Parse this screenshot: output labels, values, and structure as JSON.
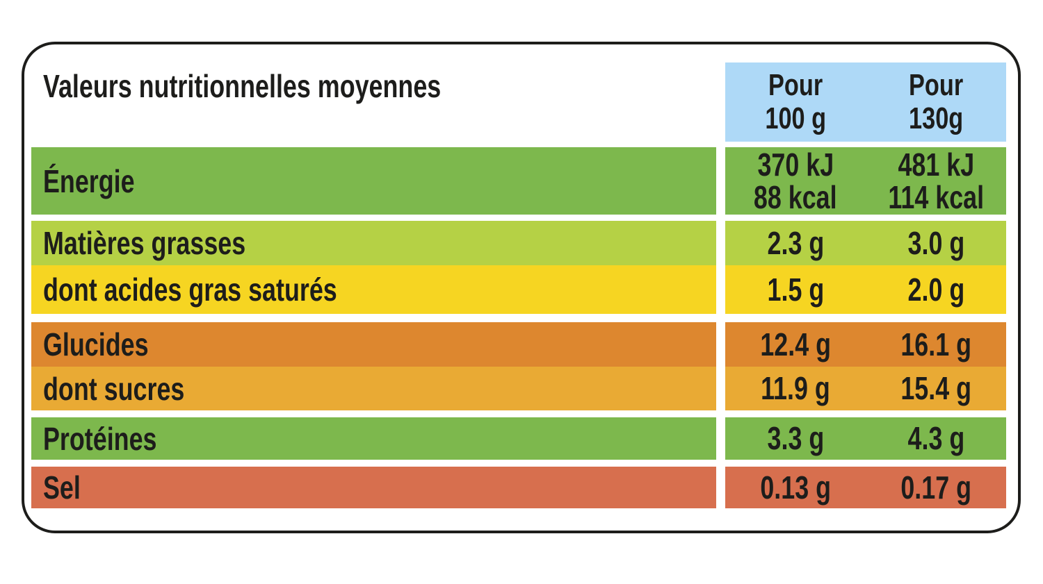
{
  "title": "Valeurs nutritionnelles moyennes",
  "colors": {
    "header_bg": "#aed9f7",
    "text": "#1d1d1b",
    "border": "#1d1d1b",
    "green": "#7db84d",
    "yellow_green": "#b5d145",
    "yellow": "#f6d522",
    "orange": "#dd872f",
    "light_orange": "#e9aa34",
    "salmon": "#d76f4e"
  },
  "header": {
    "col1": {
      "line1": "Pour",
      "line2": "100 g"
    },
    "col2": {
      "line1": "Pour",
      "line2": "130g"
    }
  },
  "rows": [
    {
      "label": "Énergie",
      "color": "#7db84d",
      "per100_line1": "370 kJ",
      "per100_line2": "88 kcal",
      "per130_line1": "481 kJ",
      "per130_line2": "114 kcal"
    },
    {
      "label": "Matières grasses",
      "color": "#b5d145",
      "per100": "2.3 g",
      "per130": "3.0 g"
    },
    {
      "label": "dont acides gras saturés",
      "color": "#f6d522",
      "per100": "1.5 g",
      "per130": "2.0 g"
    },
    {
      "label": "Glucides",
      "color": "#dd872f",
      "per100": "12.4 g",
      "per130": "16.1 g"
    },
    {
      "label": "dont sucres",
      "color": "#e9aa34",
      "per100": "11.9 g",
      "per130": "15.4 g"
    },
    {
      "label": "Protéines",
      "color": "#7db84d",
      "per100": "3.3 g",
      "per130": "4.3 g"
    },
    {
      "label": "Sel",
      "color": "#d76f4e",
      "per100": "0.13 g",
      "per130": "0.17 g"
    }
  ]
}
